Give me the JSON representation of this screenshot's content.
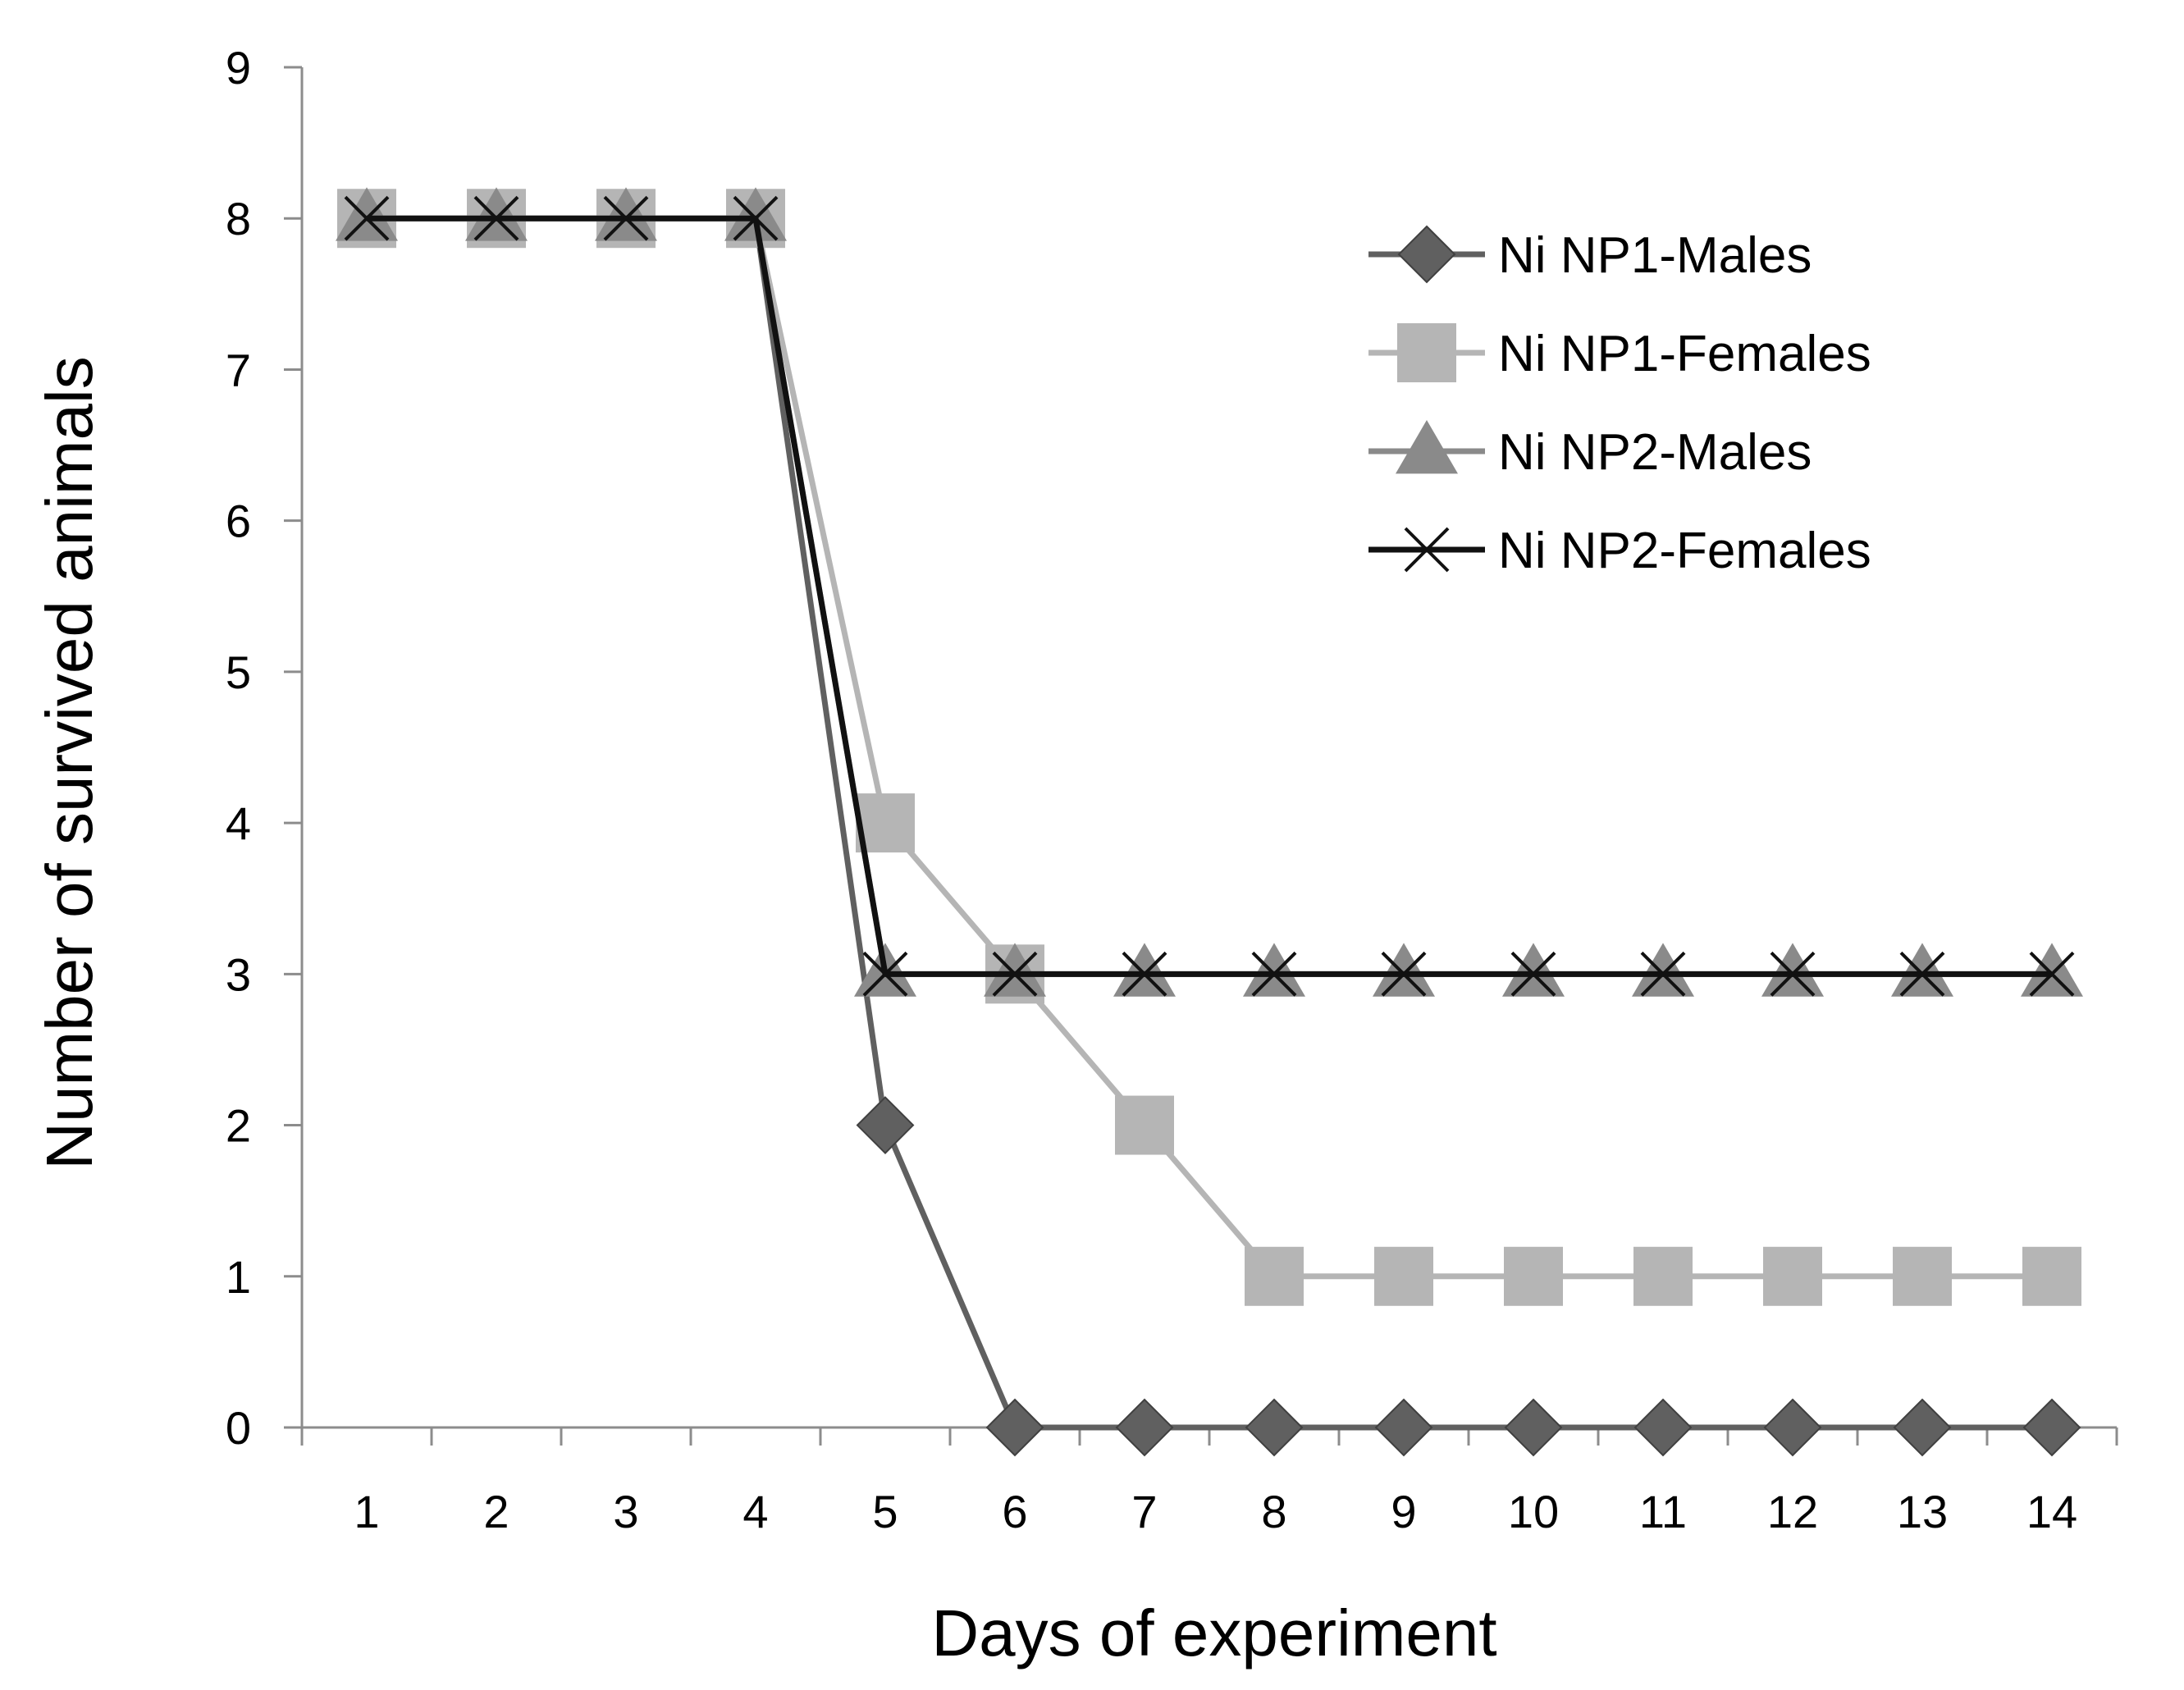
{
  "chart_data": {
    "type": "line",
    "title": "",
    "xlabel": "Days of experiment",
    "ylabel": "Number of survived animals",
    "ylim": [
      0,
      9
    ],
    "yticks": [
      "0",
      "1",
      "2",
      "3",
      "4",
      "5",
      "6",
      "7",
      "8",
      "9"
    ],
    "categories": [
      "1",
      "2",
      "3",
      "4",
      "5",
      "6",
      "7",
      "8",
      "9",
      "10",
      "11",
      "12",
      "13",
      "14"
    ],
    "grid": false,
    "legend_position": "top-right",
    "series": [
      {
        "name": "Ni NP1-Males",
        "marker": "diamond",
        "color": "#606060",
        "values": [
          8,
          8,
          8,
          8,
          2,
          0,
          0,
          0,
          0,
          0,
          0,
          0,
          0,
          0
        ]
      },
      {
        "name": "Ni NP1-Females",
        "marker": "square",
        "color": "#b5b5b5",
        "values": [
          8,
          8,
          8,
          8,
          4,
          3,
          2,
          1,
          1,
          1,
          1,
          1,
          1,
          1
        ]
      },
      {
        "name": "Ni NP2-Males",
        "marker": "triangle",
        "color": "#8a8a8a",
        "values": [
          8,
          8,
          8,
          8,
          3,
          3,
          3,
          3,
          3,
          3,
          3,
          3,
          3,
          3
        ]
      },
      {
        "name": "Ni NP2-Females",
        "marker": "x",
        "color": "#111111",
        "values": [
          8,
          8,
          8,
          8,
          3,
          3,
          3,
          3,
          3,
          3,
          3,
          3,
          3,
          3
        ]
      }
    ]
  }
}
